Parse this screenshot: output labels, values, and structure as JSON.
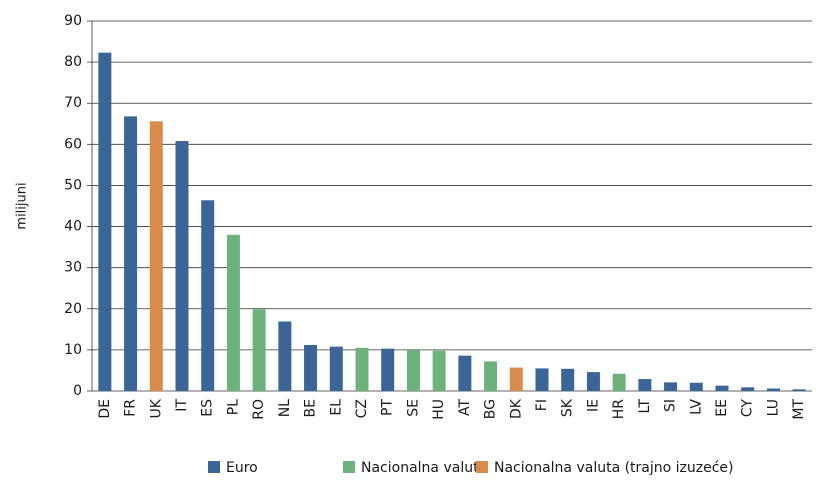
{
  "chart_data": {
    "type": "bar",
    "y_label": "milijuni",
    "categories": [
      "DE",
      "FR",
      "UK",
      "IT",
      "ES",
      "PL",
      "RO",
      "NL",
      "BE",
      "EL",
      "CZ",
      "PT",
      "SE",
      "HU",
      "AT",
      "BG",
      "DK",
      "FI",
      "SK",
      "IE",
      "HR",
      "LT",
      "SI",
      "LV",
      "EE",
      "CY",
      "LU",
      "MT"
    ],
    "series": [
      {
        "name": "Euro",
        "color": "#3b6497",
        "values": [
          82.3,
          66.8,
          null,
          60.8,
          46.4,
          null,
          null,
          16.9,
          11.2,
          10.8,
          null,
          10.3,
          null,
          null,
          8.6,
          null,
          null,
          5.5,
          5.4,
          4.6,
          null,
          2.9,
          2.1,
          2.0,
          1.3,
          0.9,
          0.6,
          0.4
        ]
      },
      {
        "name": "Nacionalna valuta",
        "color": "#6db27b",
        "values": [
          null,
          null,
          null,
          null,
          null,
          38.0,
          19.9,
          null,
          null,
          null,
          10.5,
          null,
          9.9,
          9.8,
          null,
          7.2,
          null,
          null,
          null,
          null,
          4.2,
          null,
          null,
          null,
          null,
          null,
          null,
          null
        ]
      },
      {
        "name": "Nacionalna valuta (trajno izuzeće)",
        "color": "#d98b4c",
        "values": [
          null,
          null,
          65.6,
          null,
          null,
          null,
          null,
          null,
          null,
          null,
          null,
          null,
          null,
          null,
          null,
          null,
          5.7,
          null,
          null,
          null,
          null,
          null,
          null,
          null,
          null,
          null,
          null,
          null
        ]
      }
    ],
    "ylim": [
      0,
      90
    ],
    "yticks": [
      0,
      10,
      20,
      30,
      40,
      50,
      60,
      70,
      80,
      90
    ],
    "grid": true
  }
}
